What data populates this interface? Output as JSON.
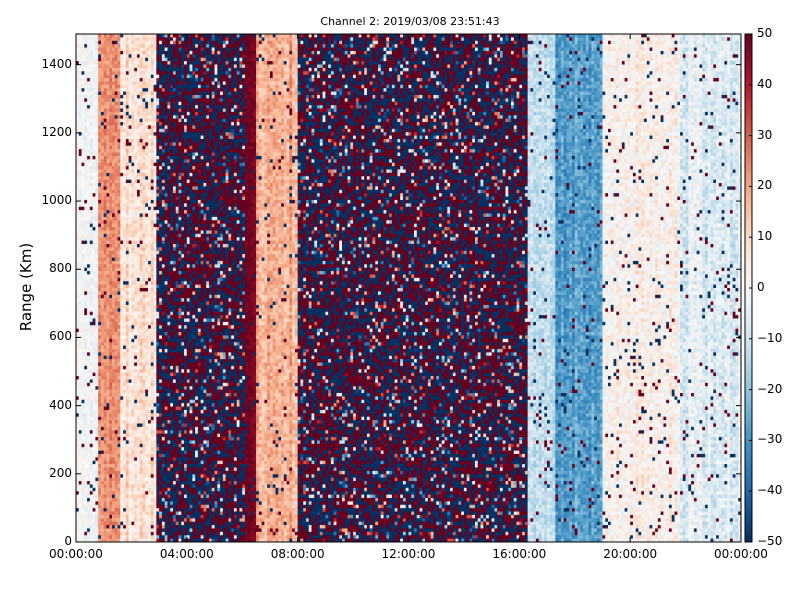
{
  "chart_data": {
    "type": "heatmap",
    "title": "Channel 2: 2019/03/08 23:51:43",
    "xlabel": "",
    "ylabel": "Range (Km)",
    "x_tick_labels": [
      "00:00:00",
      "04:00:00",
      "08:00:00",
      "12:00:00",
      "16:00:00",
      "20:00:00",
      "00:00:00"
    ],
    "x_range_hours": [
      0,
      24
    ],
    "y_ticks": [
      0,
      200,
      400,
      600,
      800,
      1000,
      1200,
      1400
    ],
    "ylim": [
      0,
      1490
    ],
    "colorbar": {
      "ticks": [
        50,
        40,
        30,
        20,
        10,
        0,
        -10,
        -20,
        -30,
        -40,
        -50
      ],
      "vmin": -50,
      "vmax": 50,
      "colormap": "RdBu_r"
    },
    "time_bands": [
      {
        "start_h": 0.0,
        "end_h": 0.8,
        "pattern": "smooth",
        "mean": -2,
        "spread": 10
      },
      {
        "start_h": 0.8,
        "end_h": 1.6,
        "pattern": "smooth",
        "mean": 22,
        "spread": 10
      },
      {
        "start_h": 1.6,
        "end_h": 2.9,
        "pattern": "smooth",
        "mean": 8,
        "spread": 14
      },
      {
        "start_h": 2.9,
        "end_h": 6.1,
        "pattern": "noise",
        "mean": 0,
        "spread": 50
      },
      {
        "start_h": 6.1,
        "end_h": 6.5,
        "pattern": "smooth",
        "mean": 48,
        "spread": 5
      },
      {
        "start_h": 6.5,
        "end_h": 8.0,
        "pattern": "smooth",
        "mean": 18,
        "spread": 12
      },
      {
        "start_h": 8.0,
        "end_h": 16.3,
        "pattern": "noise",
        "mean": 0,
        "spread": 50
      },
      {
        "start_h": 16.3,
        "end_h": 17.3,
        "pattern": "smooth",
        "mean": -12,
        "spread": 12
      },
      {
        "start_h": 17.3,
        "end_h": 19.0,
        "pattern": "smooth",
        "mean": -28,
        "spread": 12
      },
      {
        "start_h": 19.0,
        "end_h": 21.8,
        "pattern": "smooth",
        "mean": 3,
        "spread": 14
      },
      {
        "start_h": 21.8,
        "end_h": 24.0,
        "pattern": "smooth",
        "mean": -6,
        "spread": 14
      }
    ]
  }
}
